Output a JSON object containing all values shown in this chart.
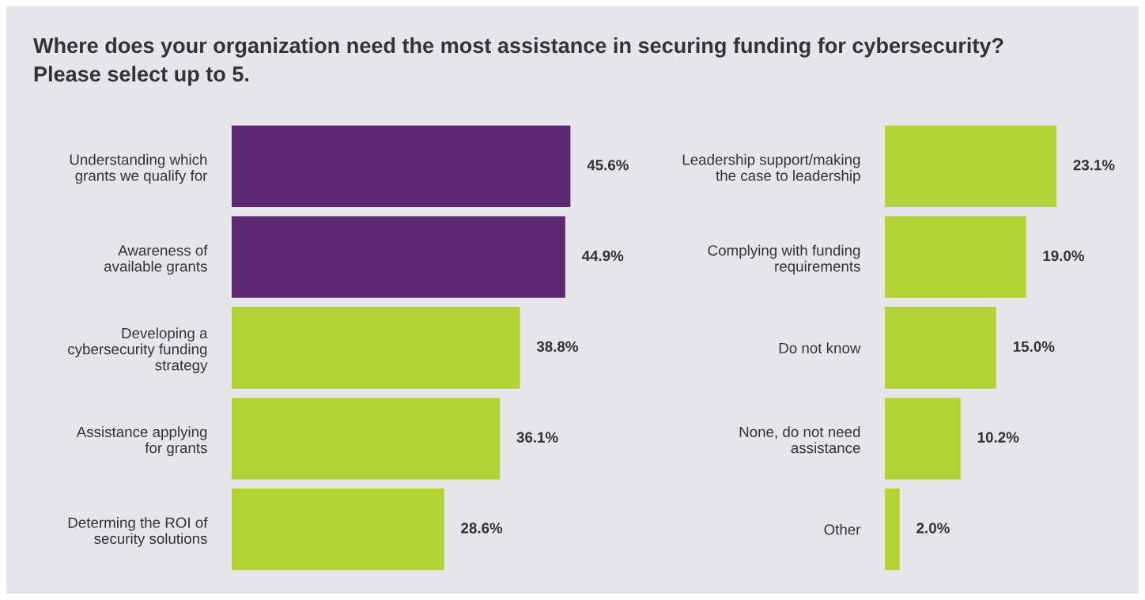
{
  "chart_data": [
    {
      "type": "bar",
      "orientation": "horizontal",
      "title": "Where does your organization need the most assistance in securing funding for cybersecurity?",
      "subtitle": "Please select up to 5.",
      "tick_labels": "y",
      "categories": [
        "Understanding which\ngrants we qualify for",
        "Awareness of\navailable grants",
        "Developing a\ncybersecurity funding\nstrategy",
        "Assistance applying\nfor grants",
        "Determing the ROI of\nsecurity solutions"
      ],
      "values": [
        45.6,
        44.9,
        38.8,
        36.1,
        28.6
      ],
      "value_labels": [
        "45.6%",
        "44.9%",
        "38.8%",
        "36.1%",
        "28.6%"
      ],
      "colors": [
        "#5b2a70",
        "#5b2a70",
        "#b2d235",
        "#b2d235",
        "#b2d235"
      ]
    },
    {
      "type": "bar",
      "orientation": "horizontal",
      "tick_labels": "y",
      "categories": [
        "Leadership support/making\nthe case to leadership",
        "Complying with funding\nrequirements",
        "Do not know",
        "None, do not need\nassistance",
        "Other"
      ],
      "values": [
        23.1,
        19.0,
        15.0,
        10.2,
        2.0
      ],
      "value_labels": [
        "23.1%",
        "19.0%",
        "15.0%",
        "10.2%",
        "2.0%"
      ],
      "colors": [
        "#b2d235",
        "#b2d235",
        "#b2d235",
        "#b2d235",
        "#b2d235"
      ]
    }
  ]
}
